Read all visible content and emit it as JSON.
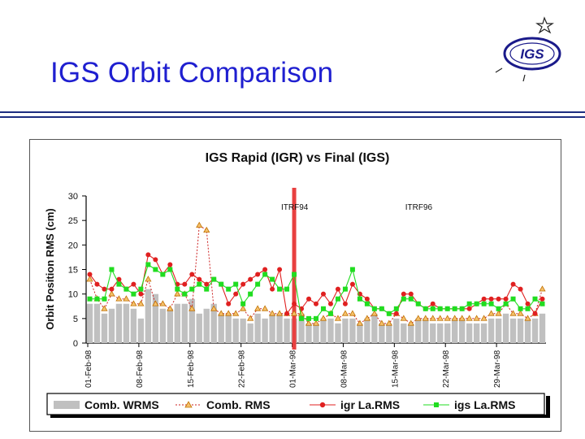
{
  "slide": {
    "title": "IGS Orbit Comparison",
    "logo_text": "IGS"
  },
  "chart_data": {
    "type": "line",
    "title": "IGS Rapid (IGR) vs Final (IGS)",
    "ylabel": "Orbit Position RMS (cm)",
    "xlabel": "",
    "ylim": [
      0,
      30
    ],
    "yticks": [
      0,
      5,
      10,
      15,
      20,
      25,
      30
    ],
    "x_tick_labels": [
      "01-Feb-98",
      "08-Feb-98",
      "15-Feb-98",
      "22-Feb-98",
      "01-Mar-98",
      "08-Mar-98",
      "15-Mar-98",
      "22-Mar-98",
      "29-Mar-98"
    ],
    "days": 63,
    "grid": false,
    "legend_position": "bottom",
    "annotations": [
      {
        "text": "ITRF94",
        "day": 29
      },
      {
        "text": "ITRF96",
        "day": 46
      }
    ],
    "marker_day": 28,
    "colors": {
      "wrms_bar": "#c0c0c0",
      "rms_marker": "#f5c16b",
      "igr": "#e02020",
      "igs": "#20dd20",
      "marker": "#e84040"
    },
    "series": [
      {
        "name": "Comb. WRMS",
        "type": "bar",
        "values": [
          8,
          8,
          6,
          7,
          8,
          8,
          7,
          5,
          11,
          10,
          7,
          7,
          8,
          8,
          9,
          6,
          7,
          8,
          6,
          6,
          5,
          5,
          4,
          6,
          5,
          6,
          6,
          5,
          5,
          6,
          4,
          4,
          5,
          5,
          4,
          5,
          5,
          4,
          5,
          6,
          4,
          4,
          5,
          4,
          4,
          5,
          5,
          4,
          4,
          4,
          5,
          5,
          4,
          4,
          4,
          5,
          5,
          6,
          5,
          5,
          5,
          5,
          6
        ]
      },
      {
        "name": "Comb. RMS",
        "type": "line",
        "values": [
          13,
          9,
          7,
          10,
          9,
          9,
          8,
          8,
          13,
          8,
          8,
          7,
          10,
          10,
          7,
          24,
          23,
          7,
          6,
          6,
          6,
          7,
          5,
          7,
          7,
          6,
          6,
          6,
          6,
          6,
          4,
          4,
          5,
          6,
          5,
          6,
          6,
          4,
          5,
          6,
          4,
          4,
          6,
          5,
          4,
          5,
          5,
          5,
          5,
          5,
          5,
          5,
          5,
          5,
          5,
          6,
          6,
          8,
          6,
          6,
          5,
          6,
          11
        ]
      },
      {
        "name": "igr La.RMS",
        "type": "line",
        "values": [
          14,
          12,
          11,
          11,
          13,
          11,
          12,
          10,
          18,
          17,
          14,
          16,
          12,
          12,
          14,
          13,
          12,
          13,
          12,
          8,
          10,
          12,
          13,
          14,
          15,
          11,
          15,
          6,
          8,
          7,
          9,
          8,
          10,
          8,
          11,
          8,
          12,
          10,
          9,
          7,
          7,
          6,
          6,
          10,
          10,
          8,
          7,
          8,
          7,
          7,
          7,
          7,
          7,
          8,
          9,
          9,
          9,
          9,
          12,
          11,
          8,
          6,
          9
        ]
      },
      {
        "name": "igs La.RMS",
        "type": "line",
        "values": [
          9,
          9,
          9,
          15,
          12,
          11,
          10,
          11,
          16,
          15,
          14,
          15,
          11,
          10,
          11,
          12,
          11,
          13,
          12,
          11,
          12,
          8,
          10,
          12,
          14,
          13,
          11,
          11,
          14,
          5,
          5,
          5,
          7,
          6,
          9,
          11,
          15,
          9,
          8,
          7,
          7,
          6,
          7,
          9,
          9,
          8,
          7,
          7,
          7,
          7,
          7,
          7,
          8,
          8,
          8,
          8,
          7,
          8,
          9,
          7,
          7,
          9,
          8
        ]
      }
    ]
  }
}
